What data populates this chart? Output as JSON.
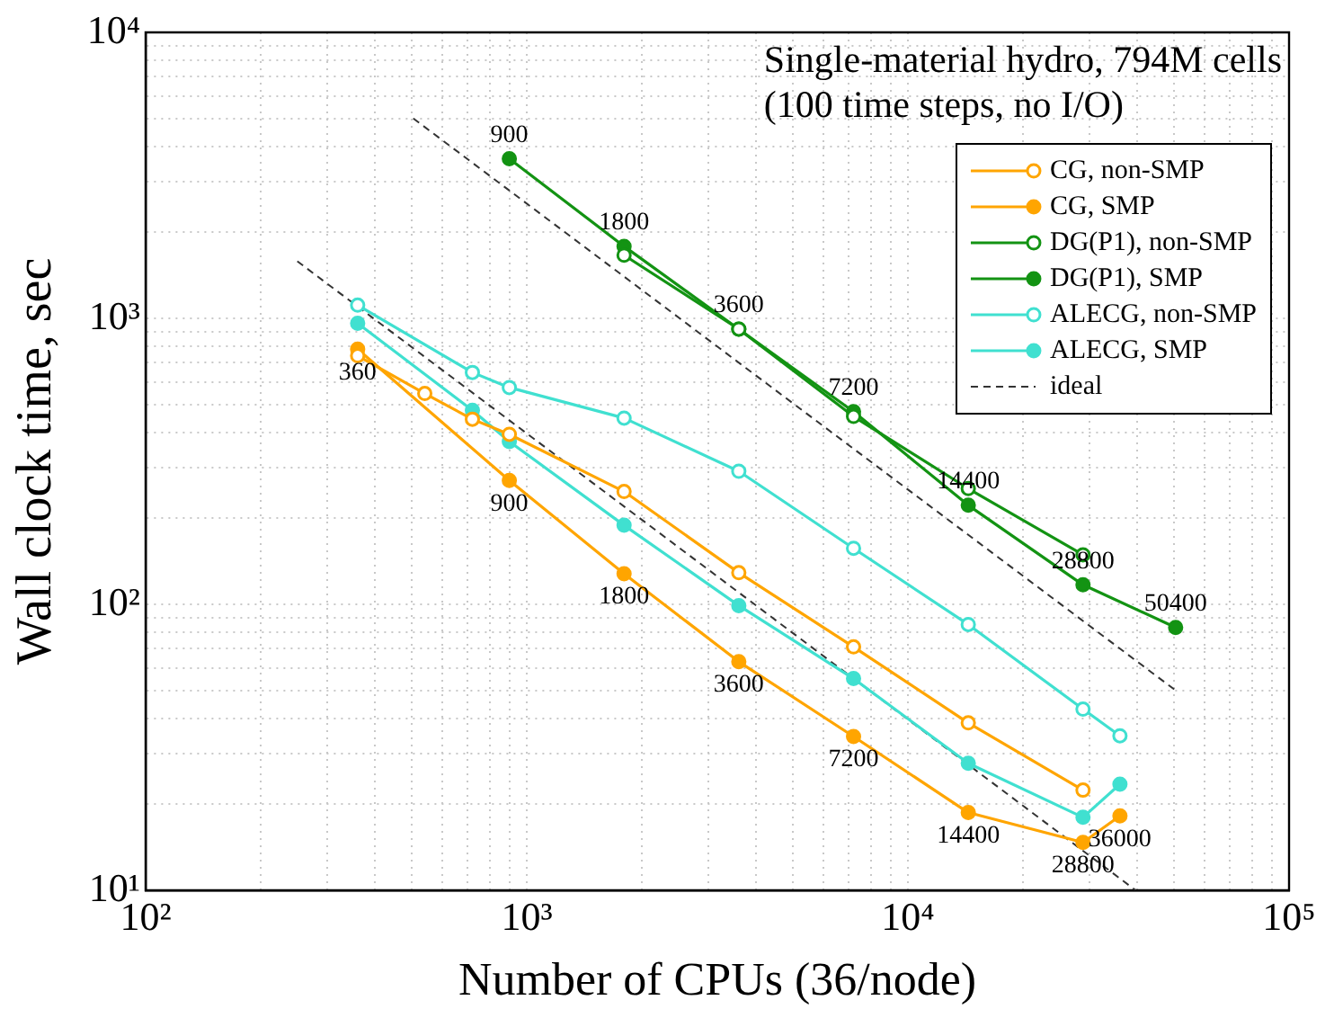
{
  "chart_data": {
    "type": "line",
    "title": "Single-material hydro, 794M cells",
    "subtitle": "(100 time steps, no I/O)",
    "xlabel": "Number of CPUs (36/node)",
    "ylabel": "Wall clock time, sec",
    "log": "xy",
    "grid": true,
    "legend": "top right",
    "xlim": [
      100,
      100000
    ],
    "ylim": [
      10,
      10000
    ],
    "xticks": [
      {
        "value": 100,
        "label": "10²"
      },
      {
        "value": 200,
        "label": null
      },
      {
        "value": 300,
        "label": null
      },
      {
        "value": 400,
        "label": null
      },
      {
        "value": 500,
        "label": null
      },
      {
        "value": 600,
        "label": null
      },
      {
        "value": 700,
        "label": null
      },
      {
        "value": 800,
        "label": null
      },
      {
        "value": 900,
        "label": null
      },
      {
        "value": 1000,
        "label": "10³"
      },
      {
        "value": 2000,
        "label": null
      },
      {
        "value": 3000,
        "label": null
      },
      {
        "value": 4000,
        "label": null
      },
      {
        "value": 5000,
        "label": null
      },
      {
        "value": 6000,
        "label": null
      },
      {
        "value": 7000,
        "label": null
      },
      {
        "value": 8000,
        "label": null
      },
      {
        "value": 9000,
        "label": null
      },
      {
        "value": 10000,
        "label": "10⁴"
      },
      {
        "value": 20000,
        "label": null
      },
      {
        "value": 30000,
        "label": null
      },
      {
        "value": 40000,
        "label": null
      },
      {
        "value": 50000,
        "label": null
      },
      {
        "value": 60000,
        "label": null
      },
      {
        "value": 70000,
        "label": null
      },
      {
        "value": 80000,
        "label": null
      },
      {
        "value": 90000,
        "label": null
      },
      {
        "value": 100000,
        "label": "10⁵"
      }
    ],
    "yticks": [
      {
        "value": 10,
        "label": "10¹"
      },
      {
        "value": 20,
        "label": null
      },
      {
        "value": 30,
        "label": null
      },
      {
        "value": 40,
        "label": null
      },
      {
        "value": 50,
        "label": null
      },
      {
        "value": 60,
        "label": null
      },
      {
        "value": 70,
        "label": null
      },
      {
        "value": 80,
        "label": null
      },
      {
        "value": 90,
        "label": null
      },
      {
        "value": 100,
        "label": "10²"
      },
      {
        "value": 200,
        "label": null
      },
      {
        "value": 300,
        "label": null
      },
      {
        "value": 400,
        "label": null
      },
      {
        "value": 500,
        "label": null
      },
      {
        "value": 600,
        "label": null
      },
      {
        "value": 700,
        "label": null
      },
      {
        "value": 800,
        "label": null
      },
      {
        "value": 900,
        "label": null
      },
      {
        "value": 1000,
        "label": "10³"
      },
      {
        "value": 2000,
        "label": null
      },
      {
        "value": 3000,
        "label": null
      },
      {
        "value": 4000,
        "label": null
      },
      {
        "value": 5000,
        "label": null
      },
      {
        "value": 6000,
        "label": null
      },
      {
        "value": 7000,
        "label": null
      },
      {
        "value": 8000,
        "label": null
      },
      {
        "value": 9000,
        "label": null
      },
      {
        "value": 10000,
        "label": "10⁴"
      }
    ],
    "series": [
      {
        "name": "CG, non-SMP",
        "color": "#ffa500",
        "marker": "circle-open",
        "line_style": "solid",
        "x": [
          360,
          540,
          720,
          900,
          1800,
          3600,
          7200,
          14400,
          28800
        ],
        "values": [
          740,
          546,
          444,
          393,
          248,
          129,
          71,
          38.5,
          22.4
        ]
      },
      {
        "name": "CG, SMP",
        "color": "#ffa500",
        "marker": "circle",
        "line_style": "solid",
        "x": [
          360,
          900,
          1800,
          3600,
          7200,
          14400,
          28800,
          36000
        ],
        "values": [
          780,
          271,
          128,
          63,
          34.5,
          18.7,
          14.7,
          18.2
        ]
      },
      {
        "name": "DG(P1), non-SMP",
        "color": "#139313",
        "marker": "circle-open",
        "line_style": "solid",
        "x": [
          1800,
          3600,
          7200,
          14400,
          28800
        ],
        "values": [
          1663,
          917,
          454,
          254,
          149
        ]
      },
      {
        "name": "DG(P1), SMP",
        "color": "#139313",
        "marker": "circle",
        "line_style": "solid",
        "x": [
          900,
          1800,
          3600,
          7200,
          14400,
          28800,
          50400
        ],
        "values": [
          3614,
          1786,
          917,
          472,
          222,
          117,
          83
        ]
      },
      {
        "name": "ALECG, non-SMP",
        "color": "#40e0d0",
        "marker": "circle-open",
        "line_style": "solid",
        "x": [
          360,
          720,
          900,
          1800,
          3600,
          7200,
          14400,
          28800,
          36000
        ],
        "values": [
          1112,
          647,
          573,
          448,
          292,
          157,
          85,
          43,
          34.7
        ]
      },
      {
        "name": "ALECG, SMP",
        "color": "#40e0d0",
        "marker": "circle",
        "line_style": "solid",
        "x": [
          360,
          720,
          900,
          1800,
          3600,
          7200,
          14400,
          28800,
          36000
        ],
        "values": [
          961,
          477,
          371,
          189,
          99,
          55,
          27.8,
          18,
          23.5
        ]
      },
      {
        "name": "ideal",
        "color": "#333333",
        "marker": "none",
        "line_style": "dashed",
        "x": [
          504,
          50400
        ],
        "values": [
          5000,
          50
        ]
      },
      {
        "color": "#333333",
        "marker": "none",
        "line_style": "dashed",
        "x": [
          250,
          39600
        ],
        "values": [
          1584,
          10
        ]
      }
    ],
    "annotations": [
      {
        "text": "900",
        "x": 900,
        "y": 3614
      },
      {
        "text": "1800",
        "x": 1800,
        "y": 1786
      },
      {
        "text": "3600",
        "x": 3600,
        "y": 917
      },
      {
        "text": "7200",
        "x": 7200,
        "y": 472
      },
      {
        "text": "14400",
        "x": 14400,
        "y": 222
      },
      {
        "text": "28800",
        "x": 28800,
        "y": 117
      },
      {
        "text": "50400",
        "x": 50400,
        "y": 83
      },
      {
        "text": "360",
        "x": 360,
        "y": 780
      },
      {
        "text": "900",
        "x": 900,
        "y": 271
      },
      {
        "text": "1800",
        "x": 1800,
        "y": 128
      },
      {
        "text": "3600",
        "x": 3600,
        "y": 63
      },
      {
        "text": "7200",
        "x": 7200,
        "y": 34.5
      },
      {
        "text": "14400",
        "x": 14400,
        "y": 18.7
      },
      {
        "text": "28800",
        "x": 28800,
        "y": 14.7
      },
      {
        "text": "36000",
        "x": 36000,
        "y": 18.2
      }
    ]
  }
}
